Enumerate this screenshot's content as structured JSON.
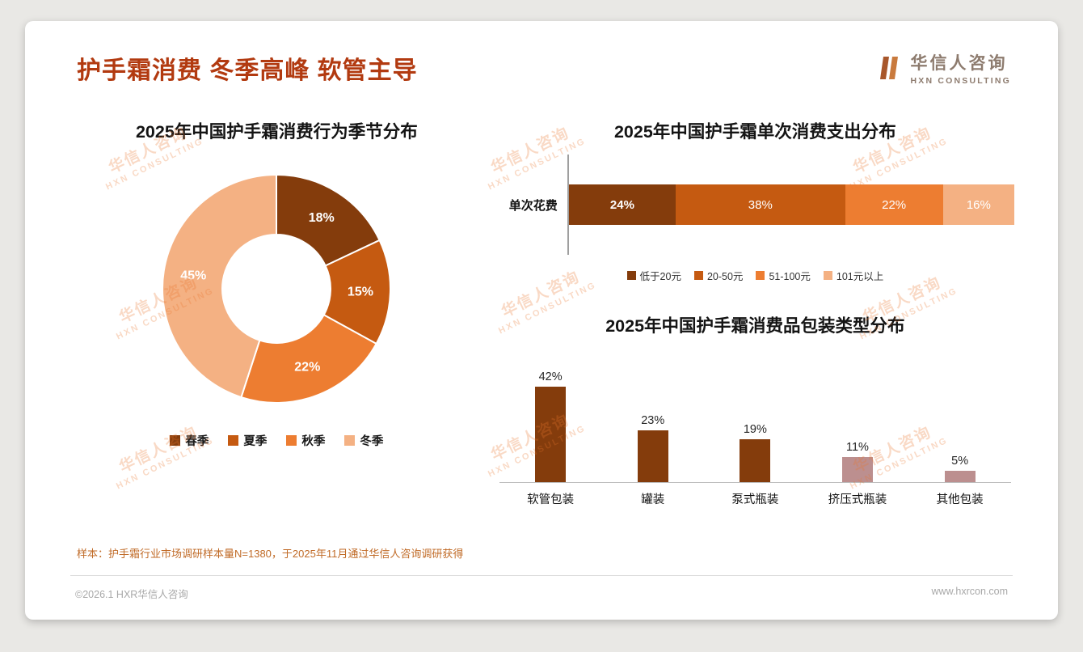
{
  "page": {
    "title": "护手霜消费 冬季高峰 软管主导",
    "logo": {
      "name": "华信人咨询",
      "sub": "HXN CONSULTING"
    },
    "watermark": {
      "line1": "华信人咨询",
      "line2": "HXN CONSULTING"
    },
    "footnote": "样本：护手霜行业市场调研样本量N=1380，于2025年11月通过华信人咨询调研获得",
    "footer_left": "©2026.1 HXR华信人咨询",
    "footer_right": "www.hxrcon.com"
  },
  "colors": {
    "accent": "#B23A10",
    "dark_brown": "#843C0C",
    "mid_brown": "#C55A11",
    "orange": "#ED7D31",
    "peach": "#F4B183",
    "rosy": "#BC8F8F"
  },
  "chart_data": [
    {
      "type": "pie",
      "subtype": "donut",
      "title": "2025年中国护手霜消费行为季节分布",
      "start_angle": 0,
      "labels": [
        "春季",
        "夏季",
        "秋季",
        "冬季"
      ],
      "values": [
        18,
        15,
        22,
        45
      ],
      "value_suffix": "%",
      "colors": [
        "#843C0C",
        "#C55A11",
        "#ED7D31",
        "#F4B183"
      ],
      "legend_position": "bottom"
    },
    {
      "type": "bar",
      "subtype": "stacked-horizontal",
      "title": "2025年中国护手霜单次消费支出分布",
      "category": "单次花费",
      "value_suffix": "%",
      "series": [
        {
          "name": "低于20元",
          "value": 24,
          "color": "#843C0C"
        },
        {
          "name": "20-50元",
          "value": 38,
          "color": "#C55A11"
        },
        {
          "name": "51-100元",
          "value": 22,
          "color": "#ED7D31"
        },
        {
          "name": "101元以上",
          "value": 16,
          "color": "#F4B183"
        }
      ],
      "xlim": [
        0,
        100
      ],
      "legend_position": "bottom"
    },
    {
      "type": "bar",
      "subtype": "column",
      "title": "2025年中国护手霜消费品包装类型分布",
      "categories": [
        "软管包装",
        "罐装",
        "泵式瓶装",
        "挤压式瓶装",
        "其他包装"
      ],
      "values": [
        42,
        23,
        19,
        11,
        5
      ],
      "value_suffix": "%",
      "colors": [
        "#843C0C",
        "#843C0C",
        "#843C0C",
        "#BC8F8F",
        "#BC8F8F"
      ],
      "ylim": [
        0,
        50
      ]
    }
  ]
}
